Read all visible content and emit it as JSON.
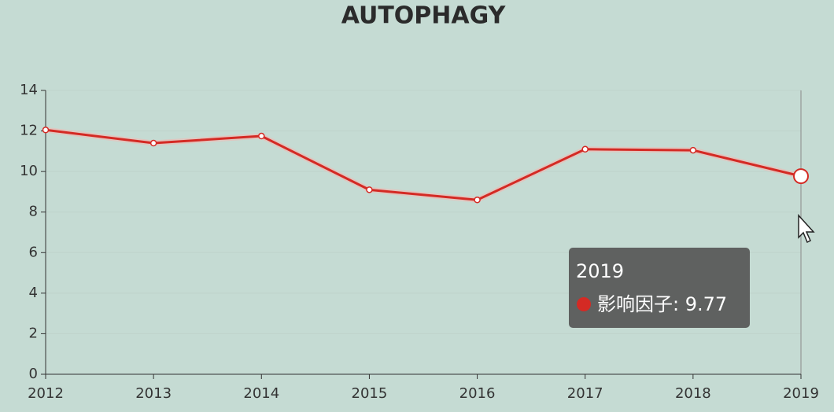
{
  "chart_data": {
    "type": "line",
    "title": "AUTOPHAGY",
    "categories": [
      "2012",
      "2013",
      "2014",
      "2015",
      "2016",
      "2017",
      "2018",
      "2019"
    ],
    "values": [
      12.05,
      11.4,
      11.75,
      9.1,
      8.6,
      11.1,
      11.05,
      9.77
    ],
    "color": "#d42a24",
    "ylim": [
      0,
      14
    ],
    "yticks": [
      0,
      2,
      4,
      6,
      8,
      10,
      12,
      14
    ],
    "grid": true,
    "tooltip": {
      "label": "影响因子: 9.77"
    }
  }
}
